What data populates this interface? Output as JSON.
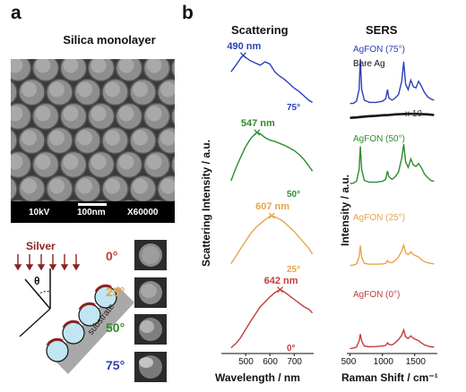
{
  "panel_a": {
    "letter": "a",
    "sem_title": "Silica monolayer",
    "sem_bar": {
      "voltage": "10kV",
      "scale": "100nm",
      "magnification": "X60000"
    },
    "silver_label": "Silver",
    "theta_label": "θ",
    "substrate_label": "substrate",
    "angles": [
      "0°",
      "25°",
      "50°",
      "75°"
    ],
    "colors": {
      "silver": "#8b2323",
      "sphere": "#bfe6f2",
      "substrate": "#a9a9a9"
    }
  },
  "panel_b": {
    "letter": "b",
    "scattering_title": "Scattering",
    "sers_title": "SERS"
  },
  "chart_data": [
    {
      "type": "line",
      "title": "Scattering",
      "xlabel": "Wavelength / nm",
      "ylabel": "Scattering Intensity / a.u.",
      "xlim": [
        400,
        780
      ],
      "xticks": [
        500,
        600,
        700
      ],
      "series": [
        {
          "name": "75°",
          "color": "#2b3fb5",
          "peak_label": "490 nm",
          "peak_x": 490,
          "x": [
            440,
            460,
            480,
            490,
            500,
            520,
            540,
            560,
            580,
            600,
            620,
            640,
            660,
            680,
            700,
            720,
            740,
            760,
            775
          ],
          "y": [
            0.7,
            0.82,
            0.95,
            1.0,
            0.96,
            0.9,
            0.86,
            0.82,
            0.88,
            0.84,
            0.7,
            0.62,
            0.56,
            0.48,
            0.4,
            0.34,
            0.26,
            0.18,
            0.14
          ]
        },
        {
          "name": "50°",
          "color": "#2e8b2e",
          "peak_label": "547 nm",
          "peak_x": 547,
          "x": [
            440,
            460,
            480,
            500,
            520,
            540,
            547,
            560,
            580,
            600,
            620,
            640,
            660,
            680,
            700,
            720,
            740,
            760,
            775
          ],
          "y": [
            0.25,
            0.45,
            0.62,
            0.78,
            0.9,
            0.98,
            1.0,
            0.98,
            0.92,
            0.88,
            0.86,
            0.83,
            0.8,
            0.76,
            0.72,
            0.66,
            0.58,
            0.48,
            0.4
          ]
        },
        {
          "name": "25°",
          "color": "#e8a44a",
          "peak_label": "607 nm",
          "peak_x": 607,
          "x": [
            440,
            460,
            480,
            500,
            520,
            540,
            560,
            580,
            600,
            607,
            620,
            640,
            660,
            680,
            700,
            720,
            740,
            760,
            775
          ],
          "y": [
            0.15,
            0.28,
            0.42,
            0.55,
            0.68,
            0.78,
            0.86,
            0.93,
            0.99,
            1.0,
            0.98,
            0.94,
            0.88,
            0.8,
            0.72,
            0.62,
            0.52,
            0.42,
            0.32
          ]
        },
        {
          "name": "0°",
          "color": "#c43c3c",
          "peak_label": "642 nm",
          "peak_x": 642,
          "x": [
            440,
            460,
            480,
            500,
            520,
            540,
            560,
            580,
            600,
            620,
            642,
            660,
            680,
            700,
            720,
            740,
            760,
            775
          ],
          "y": [
            0.05,
            0.12,
            0.22,
            0.35,
            0.48,
            0.6,
            0.72,
            0.8,
            0.88,
            0.95,
            1.0,
            0.96,
            0.9,
            0.84,
            0.78,
            0.72,
            0.68,
            0.62
          ]
        }
      ]
    },
    {
      "type": "line",
      "title": "SERS",
      "xlabel": "Raman Shift / cm⁻¹",
      "ylabel": "Intensity / a.u.",
      "xlim": [
        450,
        1850
      ],
      "xticks": [
        500,
        1000,
        1500
      ],
      "series": [
        {
          "name": "AgFON (75°)",
          "color": "#2b3fb5",
          "x": [
            500,
            550,
            600,
            640,
            660,
            680,
            720,
            800,
            900,
            1000,
            1050,
            1080,
            1100,
            1150,
            1200,
            1250,
            1300,
            1330,
            1360,
            1400,
            1440,
            1480,
            1520,
            1560,
            1600,
            1650,
            1700,
            1750,
            1800
          ],
          "y": [
            0.2,
            0.2,
            0.24,
            0.45,
            1.0,
            0.45,
            0.26,
            0.22,
            0.22,
            0.24,
            0.28,
            0.45,
            0.3,
            0.26,
            0.3,
            0.36,
            0.6,
            0.95,
            0.55,
            0.45,
            0.62,
            0.5,
            0.48,
            0.6,
            0.52,
            0.4,
            0.32,
            0.28,
            0.26
          ]
        },
        {
          "name": "Bare Ag",
          "color": "#111111",
          "label_extra": "x 10",
          "x": [
            500,
            600,
            700,
            800,
            900,
            1000,
            1100,
            1200,
            1300,
            1400,
            1500,
            1600,
            1700,
            1800
          ],
          "y": [
            0.02,
            0.05,
            0.1,
            0.14,
            0.16,
            0.2,
            0.22,
            0.26,
            0.28,
            0.3,
            0.3,
            0.28,
            0.26,
            0.22
          ]
        },
        {
          "name": "AgFON (50°)",
          "color": "#2e8b2e",
          "x": [
            500,
            550,
            600,
            640,
            660,
            680,
            720,
            800,
            900,
            1000,
            1050,
            1080,
            1100,
            1150,
            1200,
            1250,
            1300,
            1330,
            1360,
            1400,
            1440,
            1480,
            1520,
            1560,
            1600,
            1650,
            1700,
            1750,
            1800
          ],
          "y": [
            0.15,
            0.16,
            0.2,
            0.45,
            0.95,
            0.45,
            0.22,
            0.18,
            0.18,
            0.2,
            0.24,
            0.42,
            0.3,
            0.24,
            0.3,
            0.4,
            0.7,
            1.0,
            0.62,
            0.5,
            0.68,
            0.55,
            0.52,
            0.58,
            0.5,
            0.36,
            0.28,
            0.22,
            0.2
          ]
        },
        {
          "name": "AgFON (25°)",
          "color": "#e8a44a",
          "x": [
            500,
            550,
            600,
            640,
            660,
            680,
            720,
            800,
            900,
            1000,
            1050,
            1080,
            1100,
            1150,
            1200,
            1250,
            1300,
            1330,
            1360,
            1400,
            1440,
            1480,
            1520,
            1560,
            1600,
            1650,
            1700,
            1750,
            1800
          ],
          "y": [
            0.1,
            0.12,
            0.16,
            0.4,
            0.8,
            0.4,
            0.18,
            0.15,
            0.15,
            0.16,
            0.18,
            0.28,
            0.22,
            0.2,
            0.28,
            0.4,
            0.62,
            0.82,
            0.55,
            0.48,
            0.58,
            0.48,
            0.44,
            0.4,
            0.32,
            0.24,
            0.2,
            0.18,
            0.16
          ]
        },
        {
          "name": "AgFON (0°)",
          "color": "#c43c3c",
          "x": [
            500,
            550,
            600,
            640,
            660,
            680,
            720,
            800,
            900,
            1000,
            1050,
            1080,
            1100,
            1150,
            1200,
            1250,
            1300,
            1330,
            1360,
            1400,
            1440,
            1480,
            1520,
            1560,
            1600,
            1650,
            1700,
            1750,
            1800
          ],
          "y": [
            0.08,
            0.1,
            0.14,
            0.36,
            0.62,
            0.36,
            0.18,
            0.15,
            0.16,
            0.18,
            0.2,
            0.3,
            0.24,
            0.22,
            0.3,
            0.42,
            0.58,
            0.78,
            0.52,
            0.46,
            0.56,
            0.46,
            0.42,
            0.38,
            0.3,
            0.22,
            0.18,
            0.15,
            0.14
          ]
        }
      ]
    }
  ]
}
